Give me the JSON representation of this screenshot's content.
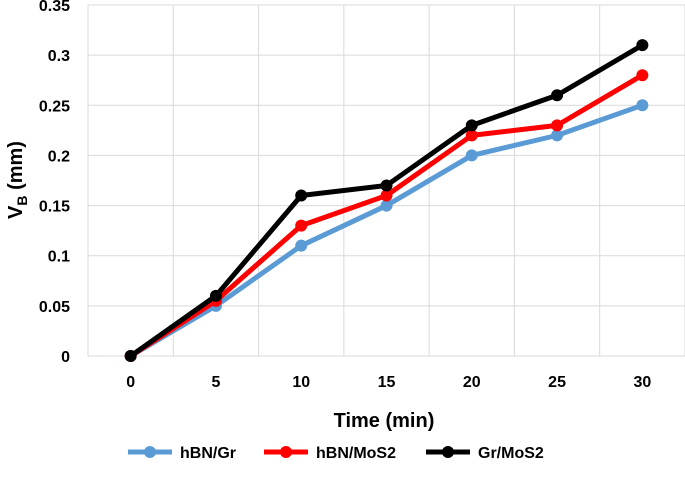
{
  "chart_data": {
    "type": "line",
    "title": "",
    "xlabel": "Time (min)",
    "ylabel_main": "V",
    "ylabel_sub": "B",
    "ylabel_unit": " (mm)",
    "x": [
      0,
      5,
      10,
      15,
      20,
      25,
      30
    ],
    "x_tick_labels": [
      "0",
      "5",
      "10",
      "15",
      "20",
      "25",
      "30"
    ],
    "y_tick_values": [
      0,
      0.05,
      0.1,
      0.15,
      0.2,
      0.25,
      0.3,
      0.35
    ],
    "y_tick_labels": [
      "0",
      "0.05",
      "0.1",
      "0.15",
      "0.2",
      "0.25",
      "0.3",
      "0.35"
    ],
    "ylim": [
      0,
      0.35
    ],
    "grid": true,
    "legend_position": "bottom",
    "series": [
      {
        "name": "hBN/Gr",
        "color": "#5b9bd5",
        "values": [
          0,
          0.05,
          0.11,
          0.15,
          0.2,
          0.22,
          0.25
        ]
      },
      {
        "name": "hBN/MoS2",
        "color": "#ff0000",
        "values": [
          0,
          0.055,
          0.13,
          0.16,
          0.22,
          0.23,
          0.28
        ]
      },
      {
        "name": "Gr/MoS2",
        "color": "#000000",
        "values": [
          0,
          0.06,
          0.16,
          0.17,
          0.23,
          0.26,
          0.31
        ]
      }
    ]
  }
}
